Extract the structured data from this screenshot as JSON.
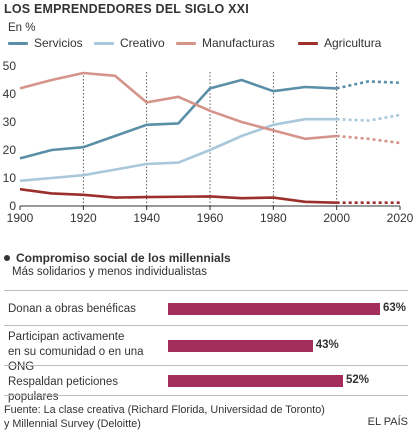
{
  "title": "LOS EMPRENDEDORES DEL SIGLO XXI",
  "subtitle": "En %",
  "chart_data": [
    {
      "type": "line",
      "title": "LOS EMPRENDEDORES DEL SIGLO XXI",
      "ylabel": "En %",
      "xlabel": "",
      "xlim": [
        1900,
        2020
      ],
      "ylim": [
        0,
        50
      ],
      "xticks": [
        "1900",
        "1920",
        "1940",
        "1960",
        "1980",
        "2000",
        "2020"
      ],
      "yticks": [
        "0",
        "10",
        "20",
        "30",
        "40",
        "50"
      ],
      "grid": false,
      "vertical_markers": [
        1920,
        1940,
        1960,
        1980,
        2000
      ],
      "projection_start": 2000,
      "legend_position": "top",
      "series": [
        {
          "name": "Servicios",
          "color": "#5b8fa8",
          "x": [
            1900,
            1910,
            1920,
            1930,
            1940,
            1950,
            1960,
            1970,
            1980,
            1990,
            2000,
            2010,
            2020
          ],
          "y": [
            17,
            20,
            21,
            25,
            29,
            29.5,
            42,
            45,
            41,
            42.5,
            42,
            44.5,
            44
          ]
        },
        {
          "name": "Creativo",
          "color": "#a9c8dc",
          "x": [
            1900,
            1910,
            1920,
            1930,
            1940,
            1950,
            1960,
            1970,
            1980,
            1990,
            2000,
            2010,
            2020
          ],
          "y": [
            9,
            10,
            11,
            13,
            15,
            15.5,
            20,
            25,
            29,
            31,
            31,
            30.5,
            32.5
          ]
        },
        {
          "name": "Manufacturas",
          "color": "#d49489",
          "x": [
            1900,
            1910,
            1920,
            1930,
            1940,
            1950,
            1960,
            1970,
            1980,
            1990,
            2000,
            2010,
            2020
          ],
          "y": [
            42,
            45,
            47.5,
            46.5,
            37,
            39,
            34,
            30,
            27,
            24,
            25,
            24,
            22.5
          ]
        },
        {
          "name": "Agricultura",
          "color": "#9c2f2c",
          "x": [
            1900,
            1910,
            1920,
            1930,
            1940,
            1950,
            1960,
            1970,
            1980,
            1990,
            2000,
            2010,
            2020
          ],
          "y": [
            6,
            4.5,
            4,
            3,
            3.2,
            3.3,
            3.4,
            2.8,
            3,
            1.5,
            1.2,
            1.2,
            1.2
          ]
        }
      ]
    },
    {
      "type": "bar",
      "title": "Compromiso social de los millennials",
      "subtitle": "Más solidarios y menos individualistas",
      "categories": [
        "Donan a obras benéficas",
        "Participan activamente en su comunidad o en una ONG",
        "Respaldan peticiones populares"
      ],
      "values": [
        63,
        43,
        52
      ],
      "value_labels": [
        "63%",
        "43%",
        "52%"
      ],
      "color": "#a32d5c",
      "xlim": [
        0,
        63
      ]
    }
  ],
  "bar_section": {
    "title": "Compromiso social de los millennials",
    "subtitle": "Más solidarios y menos individualistas",
    "rows": [
      {
        "label_line1": "Donan a obras benéficas",
        "label_line2": ""
      },
      {
        "label_line1": "Participan activamente",
        "label_line2": "en su comunidad o en una ONG"
      },
      {
        "label_line1": "Respaldan peticiones populares",
        "label_line2": ""
      }
    ]
  },
  "source": {
    "line1": "Fuente: La clase creativa (Richard Florida, Universidad de Toronto)",
    "line2": "y Millennial Survey (Deloitte)"
  },
  "brand": "EL PAÍS"
}
